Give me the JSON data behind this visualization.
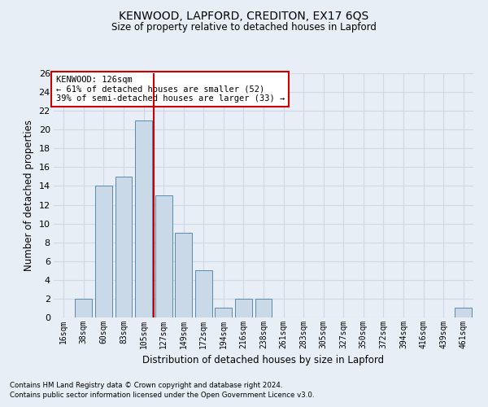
{
  "title_line1": "KENWOOD, LAPFORD, CREDITON, EX17 6QS",
  "title_line2": "Size of property relative to detached houses in Lapford",
  "xlabel": "Distribution of detached houses by size in Lapford",
  "ylabel": "Number of detached properties",
  "footer_line1": "Contains HM Land Registry data © Crown copyright and database right 2024.",
  "footer_line2": "Contains public sector information licensed under the Open Government Licence v3.0.",
  "categories": [
    "16sqm",
    "38sqm",
    "60sqm",
    "83sqm",
    "105sqm",
    "127sqm",
    "149sqm",
    "172sqm",
    "194sqm",
    "216sqm",
    "238sqm",
    "261sqm",
    "283sqm",
    "305sqm",
    "327sqm",
    "350sqm",
    "372sqm",
    "394sqm",
    "416sqm",
    "439sqm",
    "461sqm"
  ],
  "values": [
    0,
    2,
    14,
    15,
    21,
    13,
    9,
    5,
    1,
    2,
    2,
    0,
    0,
    0,
    0,
    0,
    0,
    0,
    0,
    0,
    1
  ],
  "bar_color": "#c9d9e8",
  "bar_edge_color": "#5a8ab0",
  "highlight_line_color": "#cc0000",
  "annotation_text": "KENWOOD: 126sqm\n← 61% of detached houses are smaller (52)\n39% of semi-detached houses are larger (33) →",
  "annotation_box_color": "#ffffff",
  "annotation_box_edge_color": "#cc0000",
  "ylim": [
    0,
    26
  ],
  "yticks": [
    0,
    2,
    4,
    6,
    8,
    10,
    12,
    14,
    16,
    18,
    20,
    22,
    24,
    26
  ],
  "grid_color": "#d0d8e8",
  "background_color": "#e8eef5",
  "bar_width": 0.85
}
